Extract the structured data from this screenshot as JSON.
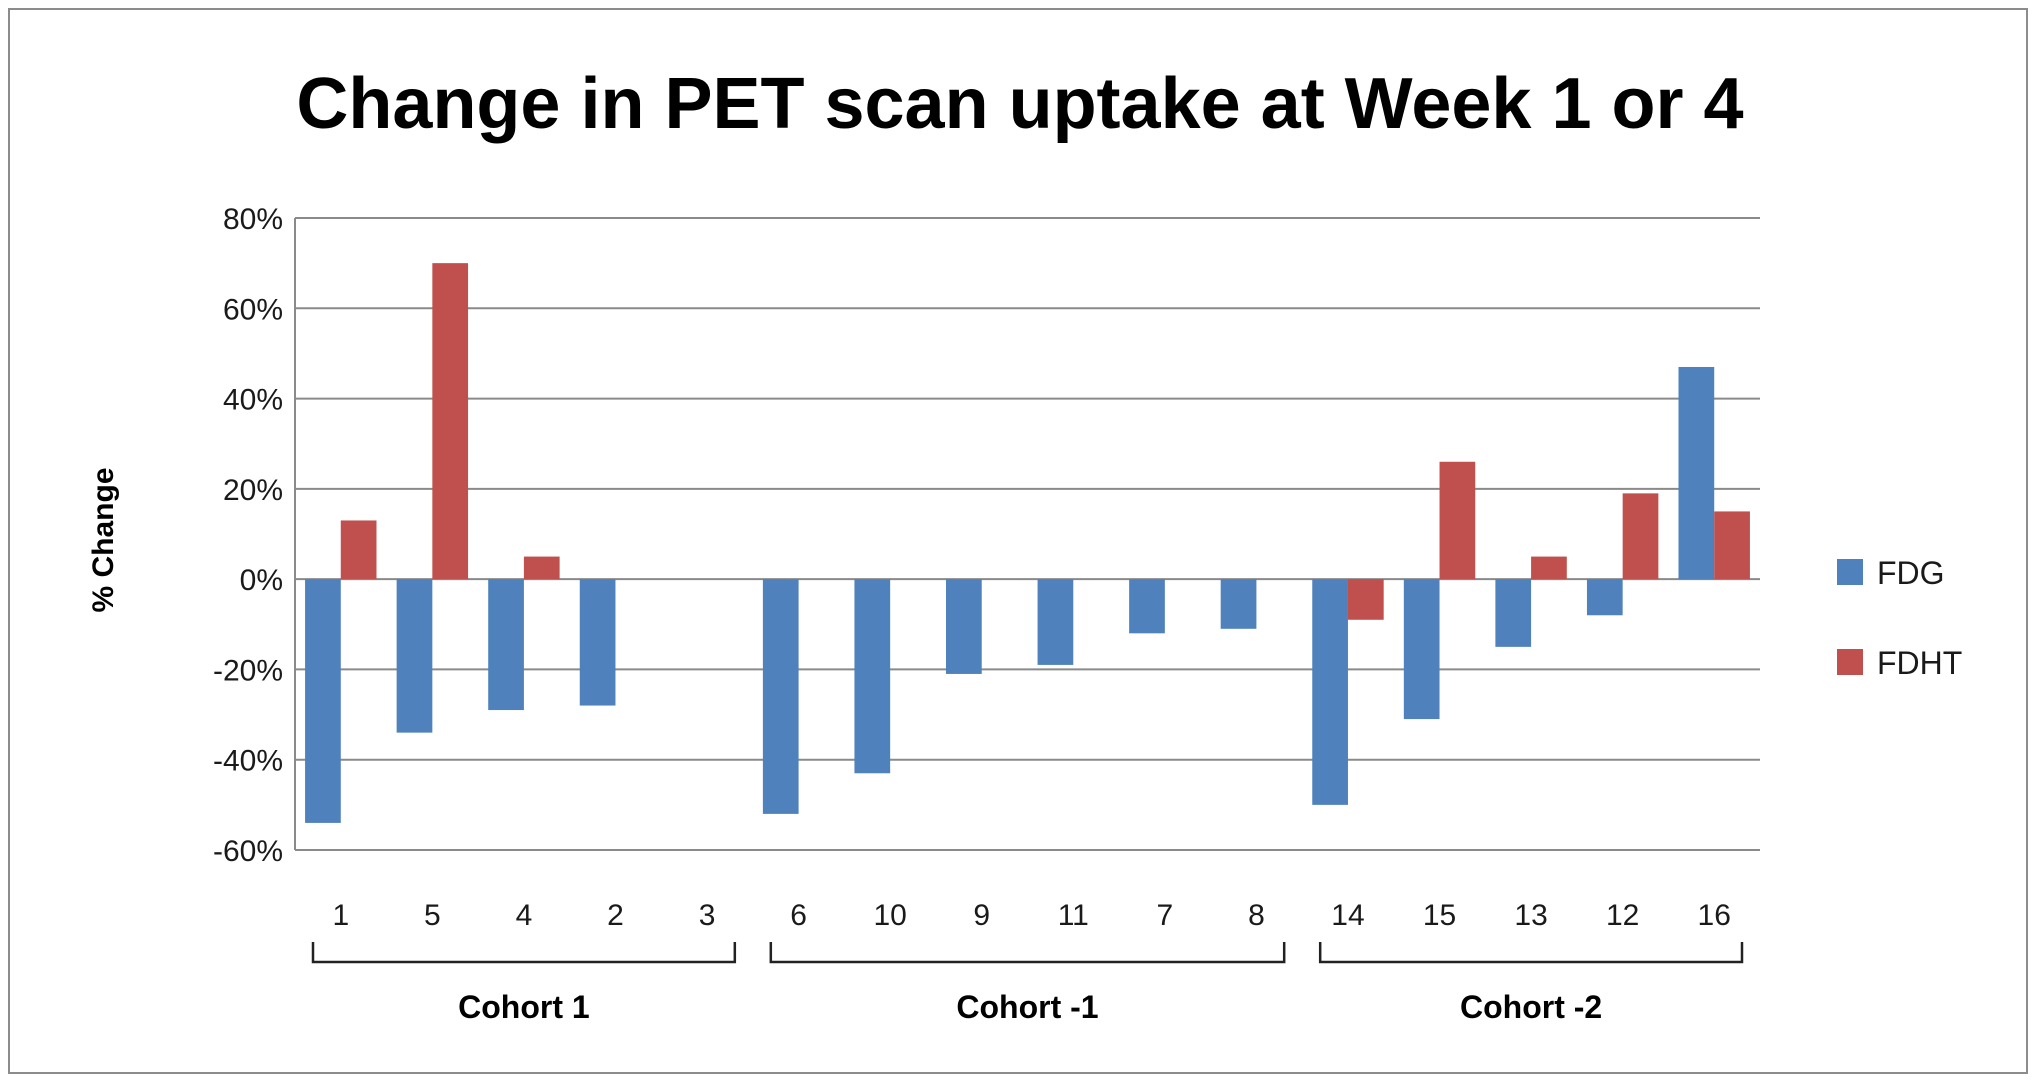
{
  "chart_data": {
    "type": "bar",
    "title": "Change in PET scan uptake at Week 1 or 4",
    "ylabel": "% Change",
    "xlabel": "",
    "ylim": [
      -60,
      80
    ],
    "yticks": [
      80,
      60,
      40,
      20,
      0,
      -20,
      -40,
      -60
    ],
    "ytick_labels": [
      "80%",
      "60%",
      "40%",
      "20%",
      "0%",
      "-20%",
      "-40%",
      "-60%"
    ],
    "grid": true,
    "legend_position": "right",
    "categories": [
      "1",
      "5",
      "4",
      "2",
      "3",
      "6",
      "10",
      "9",
      "11",
      "7",
      "8",
      "14",
      "15",
      "13",
      "12",
      "16"
    ],
    "groups": [
      {
        "label": "Cohort 1",
        "members": [
          "1",
          "5",
          "4",
          "2",
          "3"
        ]
      },
      {
        "label": "Cohort -1",
        "members": [
          "6",
          "10",
          "9",
          "11",
          "7",
          "8"
        ]
      },
      {
        "label": "Cohort -2",
        "members": [
          "14",
          "15",
          "13",
          "12",
          "16"
        ]
      }
    ],
    "series": [
      {
        "name": "FDG",
        "color": "#4f81bd",
        "values": [
          -54,
          -34,
          -29,
          -28,
          null,
          -52,
          -43,
          -21,
          -19,
          -12,
          -11,
          -50,
          -31,
          -15,
          -8,
          47
        ]
      },
      {
        "name": "FDHT",
        "color": "#c0504d",
        "values": [
          13,
          70,
          5,
          null,
          null,
          null,
          null,
          null,
          null,
          null,
          null,
          -9,
          26,
          5,
          19,
          15
        ]
      }
    ]
  }
}
